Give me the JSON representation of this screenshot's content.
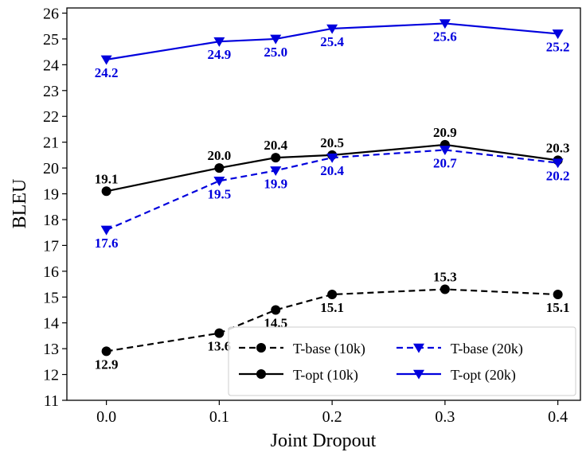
{
  "chart_data": {
    "type": "line",
    "xlabel": "Joint Dropout",
    "ylabel": "BLEU",
    "x": [
      0.0,
      0.1,
      0.15,
      0.2,
      0.3,
      0.4
    ],
    "x_ticks": [
      "0.0",
      "0.1",
      "0.2",
      "0.3",
      "0.4"
    ],
    "x_tick_values": [
      0.0,
      0.1,
      0.2,
      0.3,
      0.4
    ],
    "xlim": [
      -0.035,
      0.42
    ],
    "ylim": [
      11,
      26.2
    ],
    "y_ticks": [
      11,
      12,
      13,
      14,
      15,
      16,
      17,
      18,
      19,
      20,
      21,
      22,
      23,
      24,
      25,
      26
    ],
    "grid": false,
    "legend_position": "lower-right",
    "series": [
      {
        "name": "T-base (10k)",
        "color": "#000000",
        "line": "dashed",
        "marker": "circle",
        "values": [
          12.9,
          13.6,
          14.5,
          15.1,
          15.3,
          15.1
        ],
        "labels": [
          "12.9",
          "13.6",
          "14.5",
          "15.1",
          "15.3",
          "15.1"
        ],
        "label_pos": [
          "below",
          "below",
          "below",
          "below",
          "above",
          "below"
        ]
      },
      {
        "name": "T-opt (10k)",
        "color": "#000000",
        "line": "solid",
        "marker": "circle",
        "values": [
          19.1,
          20.0,
          20.4,
          20.5,
          20.9,
          20.3
        ],
        "labels": [
          "19.1",
          "20.0",
          "20.4",
          "20.5",
          "20.9",
          "20.3"
        ],
        "label_pos": [
          "above",
          "above",
          "above",
          "above",
          "above",
          "above"
        ]
      },
      {
        "name": "T-base (20k)",
        "color": "#0000dd",
        "line": "dashed",
        "marker": "triangle-down",
        "values": [
          17.6,
          19.5,
          19.9,
          20.4,
          20.7,
          20.2
        ],
        "labels": [
          "17.6",
          "19.5",
          "19.9",
          "20.4",
          "20.7",
          "20.2"
        ],
        "label_pos": [
          "below",
          "below",
          "below",
          "below",
          "below",
          "below"
        ]
      },
      {
        "name": "T-opt (20k)",
        "color": "#0000dd",
        "line": "solid",
        "marker": "triangle-down",
        "values": [
          24.2,
          24.9,
          25.0,
          25.4,
          25.6,
          25.2
        ],
        "labels": [
          "24.2",
          "24.9",
          "25.0",
          "25.4",
          "25.6",
          "25.2"
        ],
        "label_pos": [
          "below",
          "below",
          "below",
          "below",
          "below",
          "below"
        ]
      }
    ],
    "legend_order": [
      0,
      2,
      1,
      3
    ]
  }
}
